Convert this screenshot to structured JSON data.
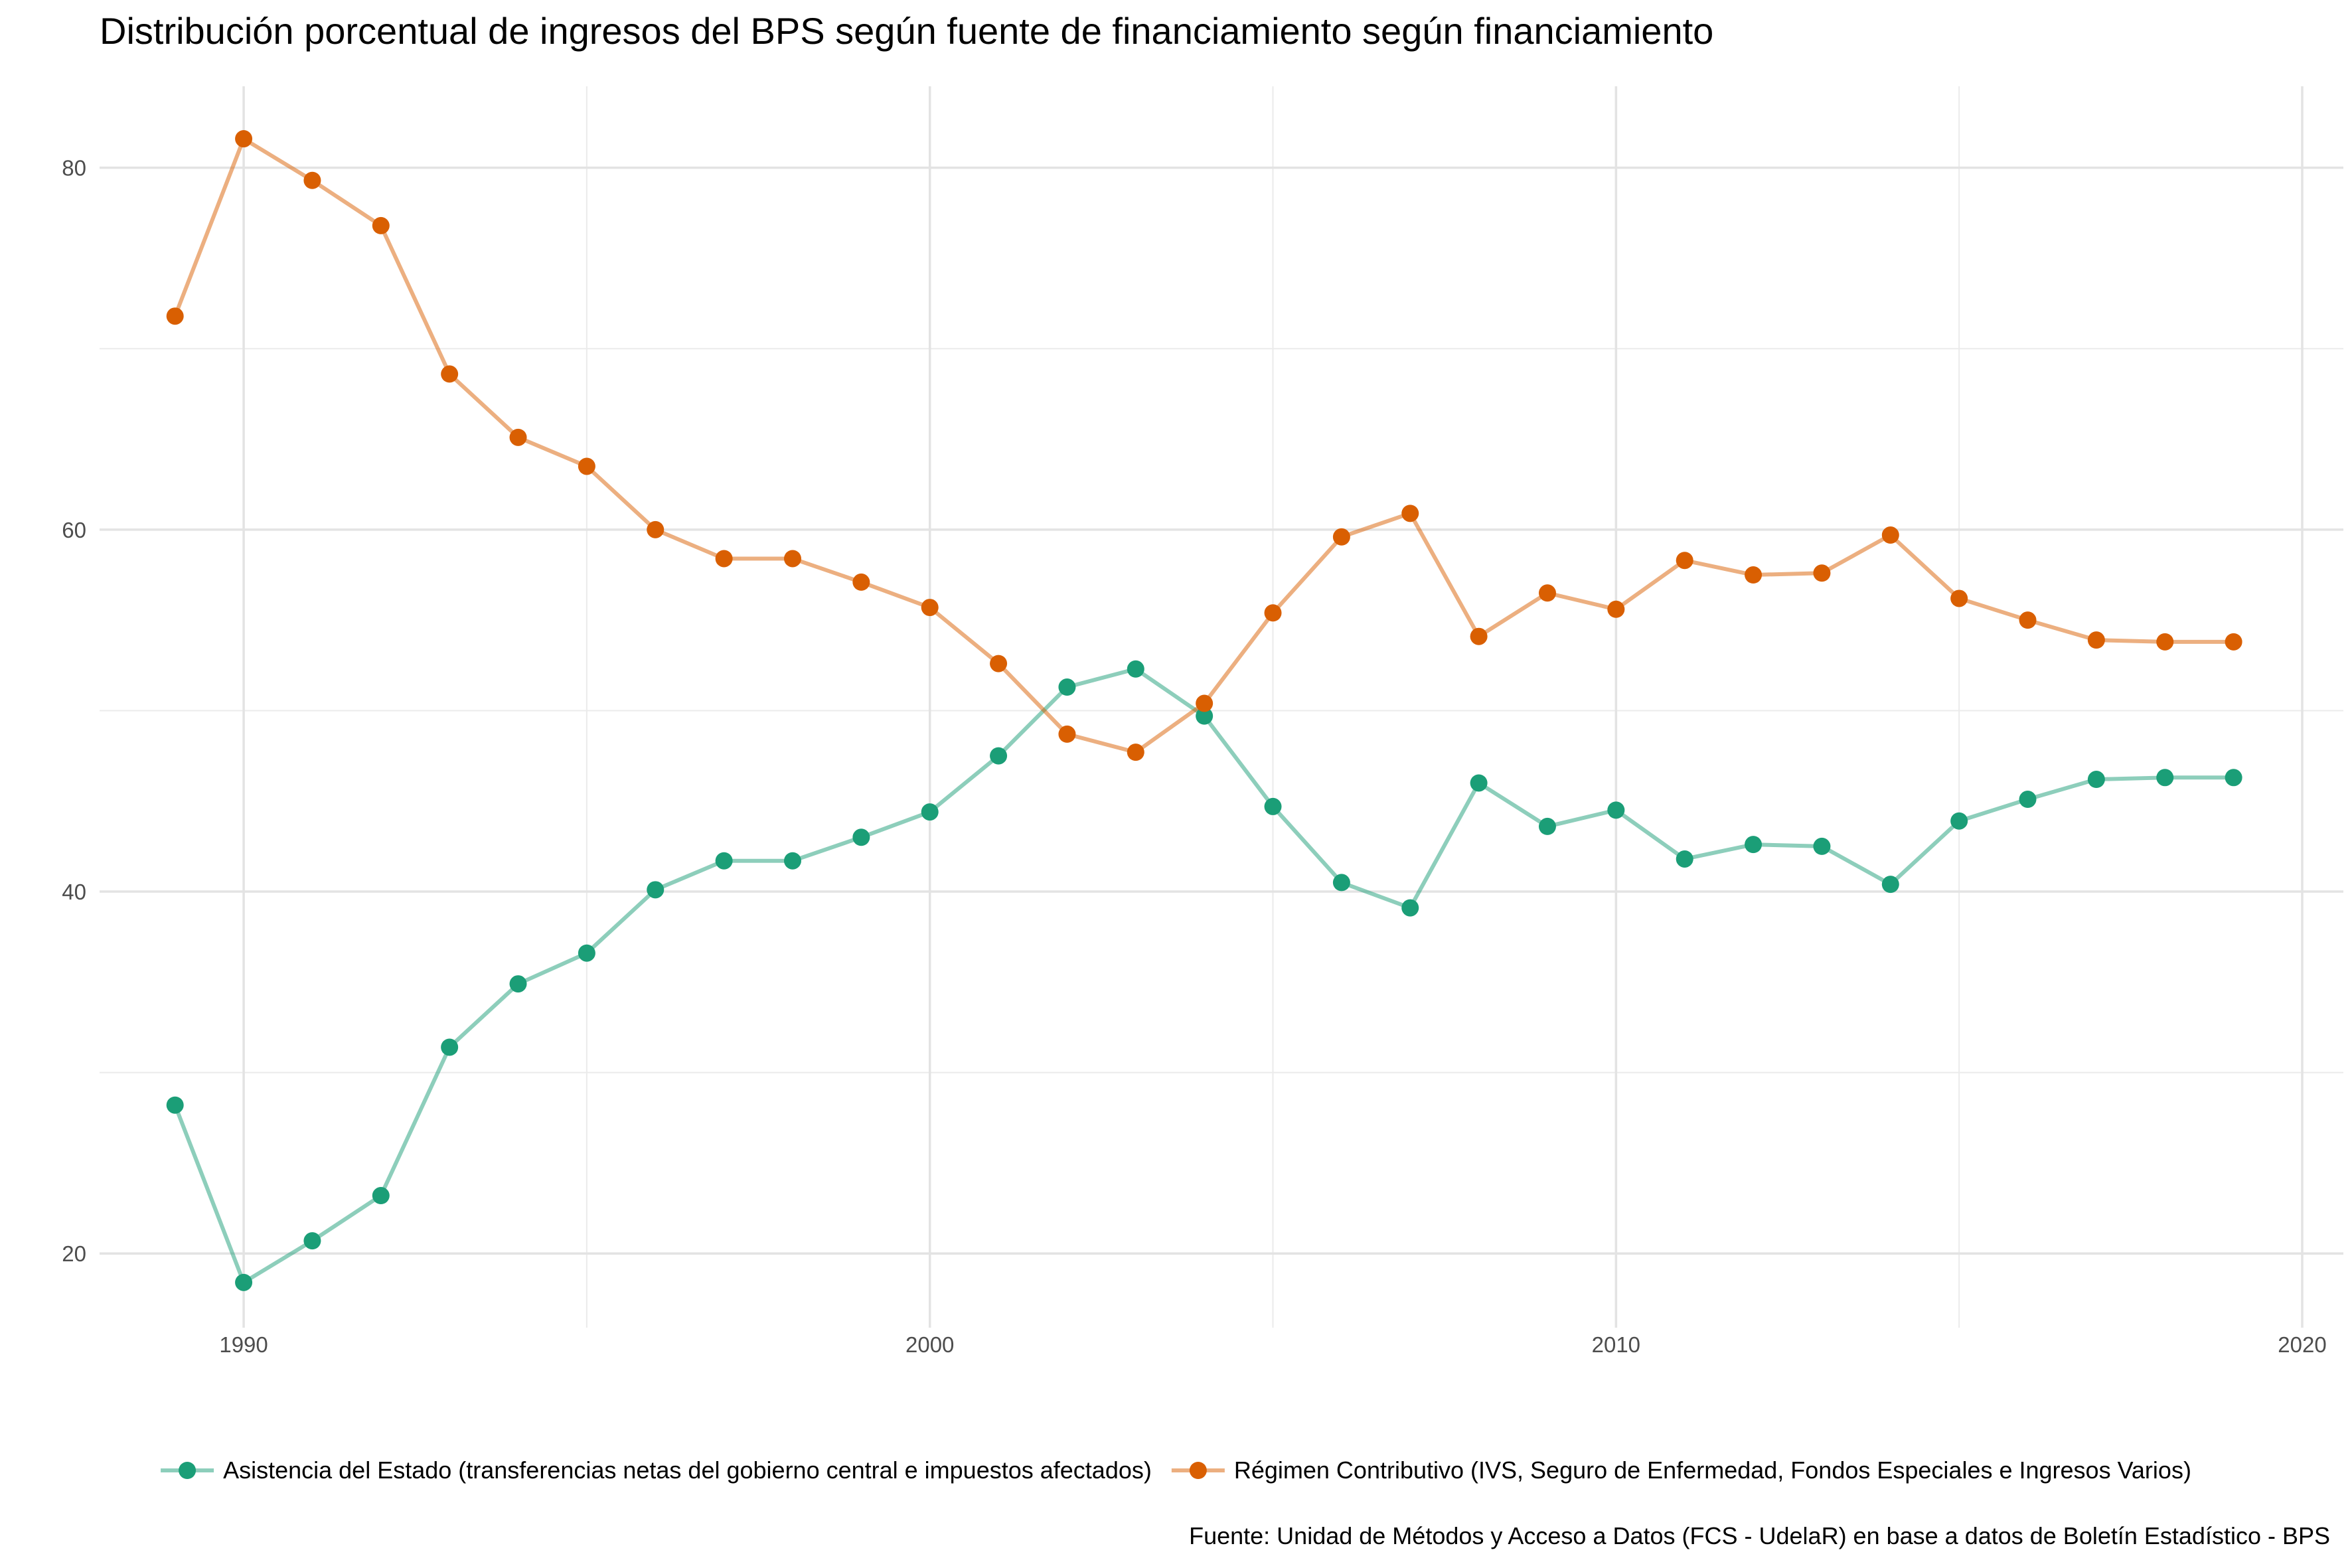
{
  "chart_data": {
    "type": "line",
    "title": "Distribución porcentual de ingresos del BPS según fuente de financiamiento según financiamiento",
    "xlabel": "",
    "ylabel": "",
    "caption": "Fuente: Unidad de Métodos y Acceso a Datos (FCS - UdelaR) en base a datos de Boletín Estadístico - BPS",
    "xlim": [
      1987.9,
      2020.6
    ],
    "ylim": [
      15.9,
      84.5
    ],
    "x_ticks": [
      1990,
      2000,
      2010,
      2020
    ],
    "y_ticks": [
      20,
      40,
      60,
      80
    ],
    "x_minor": [
      1995,
      2005,
      2015
    ],
    "y_minor": [
      30,
      50,
      70
    ],
    "grid": true,
    "legend_position": "bottom",
    "x": [
      1989,
      1990,
      1991,
      1992,
      1993,
      1994,
      1995,
      1996,
      1997,
      1998,
      1999,
      2000,
      2001,
      2002,
      2003,
      2004,
      2005,
      2006,
      2007,
      2008,
      2009,
      2010,
      2011,
      2012,
      2013,
      2014,
      2015,
      2016,
      2017,
      2018,
      2019
    ],
    "series": [
      {
        "name": "Asistencia del Estado (transferencias netas del gobierno central e impuestos afectados)",
        "color": "#1b9e77",
        "values": [
          28.2,
          18.4,
          20.7,
          23.2,
          31.4,
          34.9,
          36.6,
          40.1,
          41.7,
          41.7,
          43.0,
          44.4,
          47.5,
          51.3,
          52.3,
          49.7,
          44.7,
          40.5,
          39.1,
          46.0,
          43.6,
          44.5,
          41.8,
          42.6,
          42.5,
          40.4,
          43.9,
          45.1,
          46.2,
          46.3,
          46.3
        ]
      },
      {
        "name": "Régimen Contributivo (IVS, Seguro de Enfermedad, Fondos Especiales e Ingresos Varios)",
        "color": "#d95f02",
        "values": [
          71.8,
          81.6,
          79.3,
          76.8,
          68.6,
          65.1,
          63.5,
          60.0,
          58.4,
          58.4,
          57.1,
          55.7,
          52.6,
          48.7,
          47.7,
          50.4,
          55.4,
          59.6,
          60.9,
          54.1,
          56.5,
          55.6,
          58.3,
          57.5,
          57.6,
          59.7,
          56.2,
          55.0,
          53.9,
          53.8,
          53.8
        ]
      }
    ]
  }
}
